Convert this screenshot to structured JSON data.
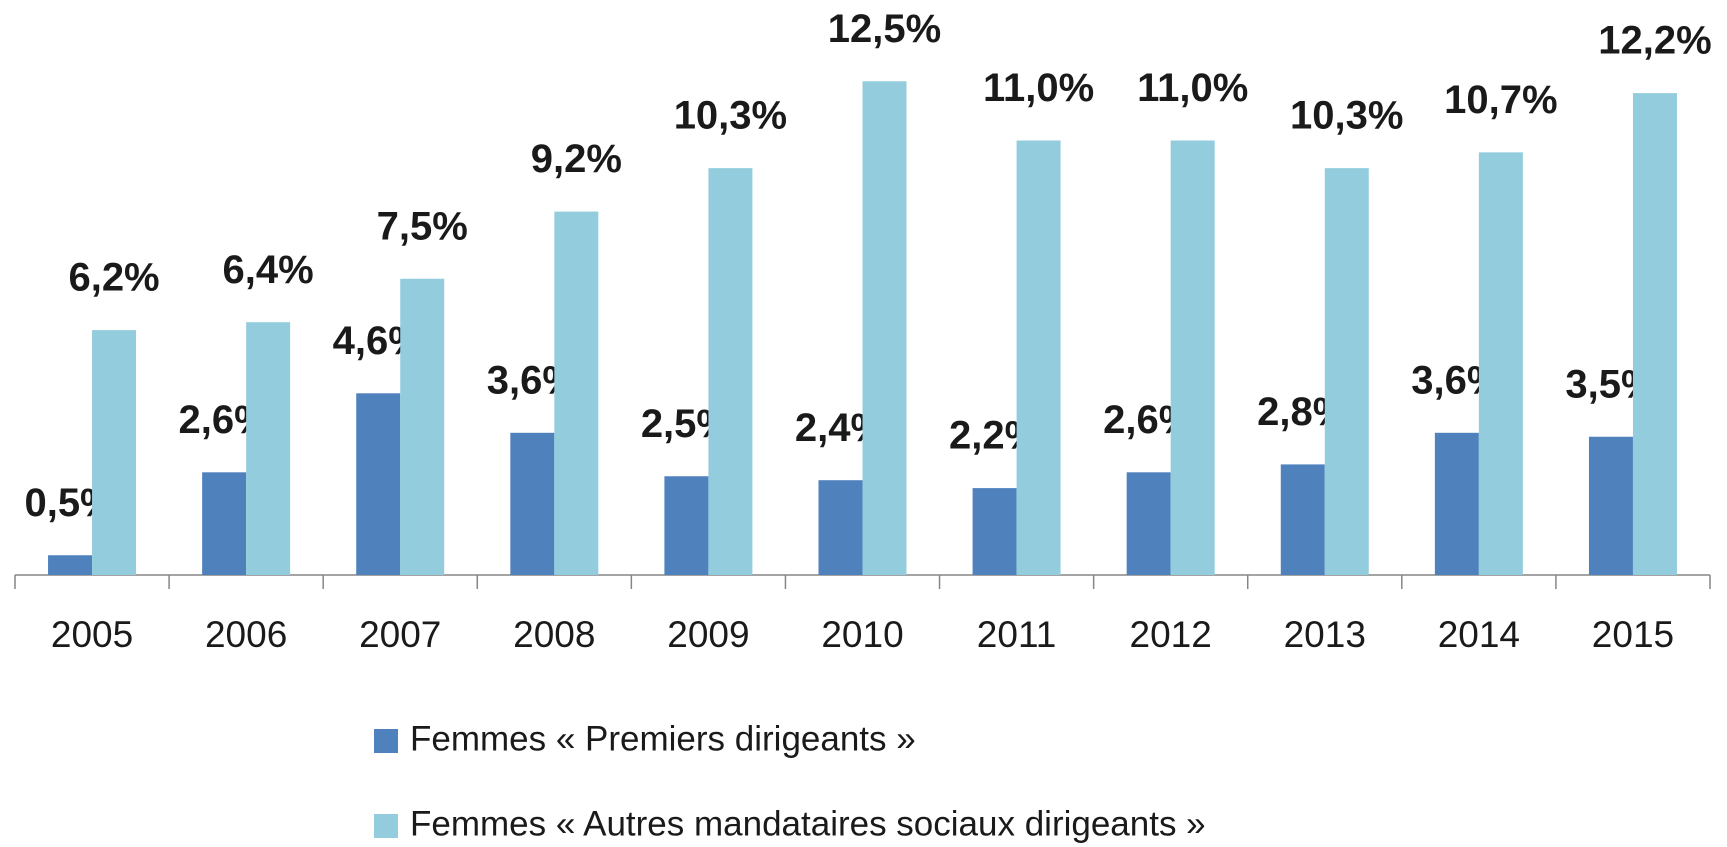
{
  "chart_data": {
    "type": "bar",
    "categories": [
      "2005",
      "2006",
      "2007",
      "2008",
      "2009",
      "2010",
      "2011",
      "2012",
      "2013",
      "2014",
      "2015"
    ],
    "series": [
      {
        "name": "Femmes « Premiers dirigeants »",
        "color": "#4f81bd",
        "values": [
          0.5,
          2.6,
          4.6,
          3.6,
          2.5,
          2.4,
          2.2,
          2.6,
          2.8,
          3.6,
          3.5
        ],
        "value_labels": [
          "0,5%",
          "2,6%",
          "4,6%",
          "3,6%",
          "2,5%",
          "2,4%",
          "2,2%",
          "2,6%",
          "2,8%",
          "3,6%",
          "3,5%"
        ]
      },
      {
        "name": "Femmes « Autres mandataires sociaux dirigeants »",
        "color": "#93cddd",
        "values": [
          6.2,
          6.4,
          7.5,
          9.2,
          10.3,
          12.5,
          11.0,
          11.0,
          10.3,
          10.7,
          12.2
        ],
        "value_labels": [
          "6,2%",
          "6,4%",
          "7,5%",
          "9,2%",
          "10,3%",
          "12,5%",
          "11,0%",
          "11,0%",
          "10,3%",
          "10,7%",
          "12,2%"
        ]
      }
    ]
  }
}
